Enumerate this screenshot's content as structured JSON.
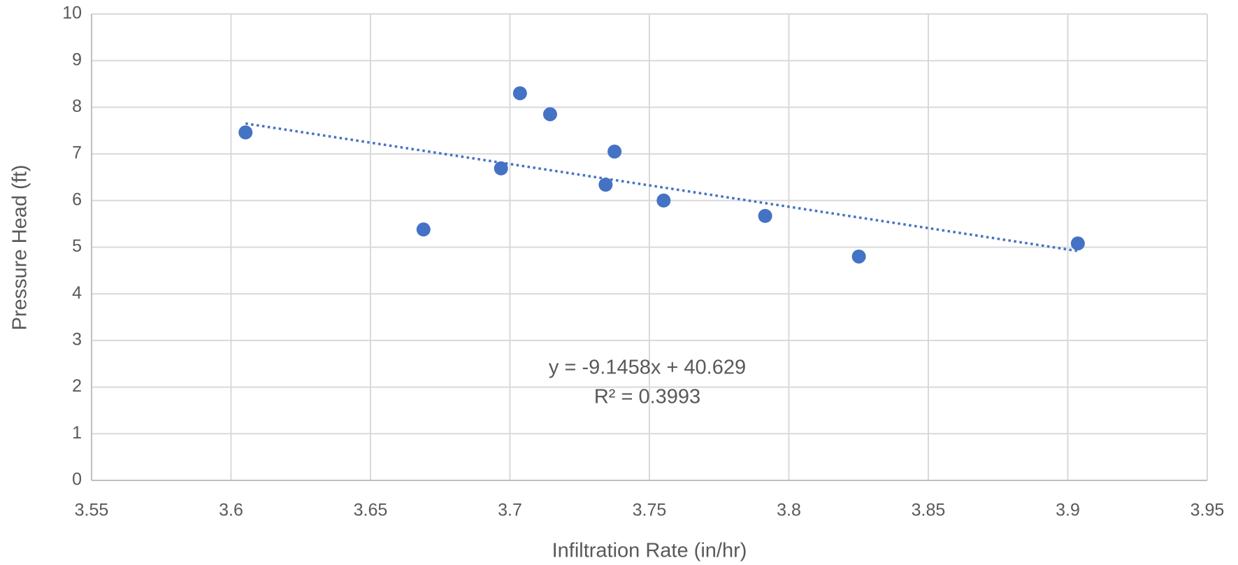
{
  "chart_data": {
    "type": "scatter",
    "x_label": "Infiltration Rate (in/hr)",
    "y_label": "Pressure Head (ft)",
    "series": [
      {
        "color": "#4472c4",
        "x": [
          3.6052,
          3.669,
          3.6968,
          3.7036,
          3.7144,
          3.7343,
          3.7375,
          3.7551,
          3.7915,
          3.8251,
          3.9036
        ],
        "values": [
          7.46,
          5.38,
          6.69,
          8.3,
          7.85,
          6.34,
          7.05,
          6.0,
          5.67,
          4.8,
          5.08
        ]
      }
    ],
    "trendline": {
      "equation": "y = -9.1458x + 40.629",
      "r_squared": "R² = 0.3993",
      "style": "dotted"
    },
    "xlim": [
      3.55,
      3.95
    ],
    "xticks": [
      3.55,
      3.6,
      3.65,
      3.7,
      3.75,
      3.8,
      3.85,
      3.9,
      3.95
    ],
    "ylim": [
      0,
      10
    ],
    "yticks": [
      0,
      1,
      2,
      3,
      4,
      5,
      6,
      7,
      8,
      9,
      10
    ],
    "grid": true
  }
}
